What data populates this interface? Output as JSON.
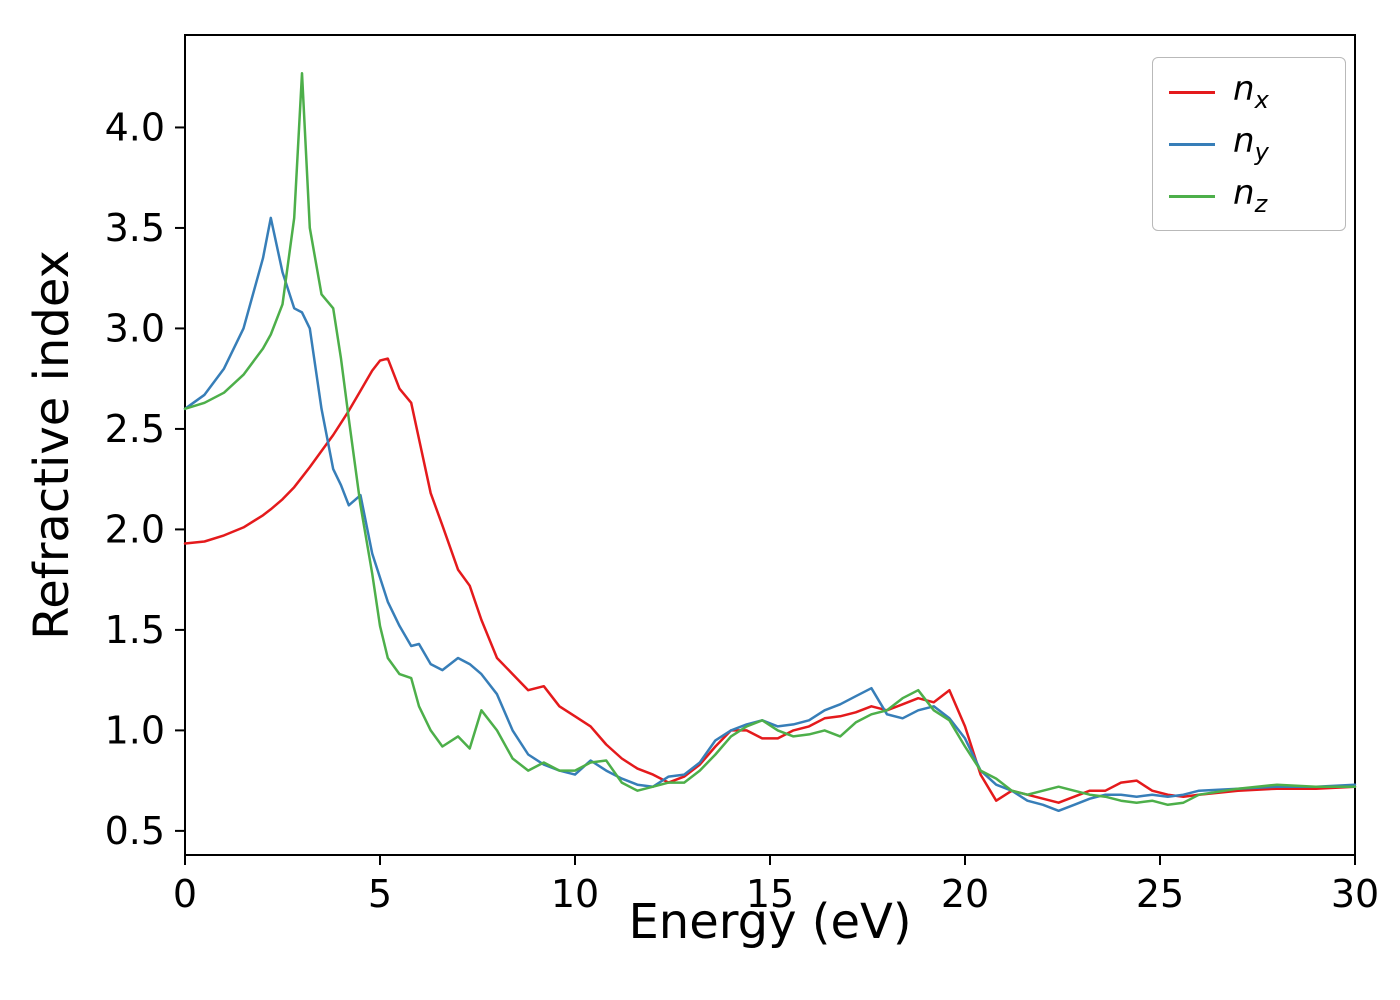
{
  "figure": {
    "background": "#ffffff",
    "frame_color": "#000000"
  },
  "legend": {
    "position": "upper right",
    "entries": [
      {
        "base": "n",
        "sub": "x",
        "color": "#e41a1c"
      },
      {
        "base": "n",
        "sub": "y",
        "color": "#377eb8"
      },
      {
        "base": "n",
        "sub": "z",
        "color": "#4daf4a"
      }
    ]
  },
  "chart_data": {
    "type": "line",
    "title": "",
    "xlabel": "Energy (eV)",
    "ylabel": "Refractive index",
    "xlim": [
      0,
      30
    ],
    "ylim": [
      0.38,
      4.46
    ],
    "grid": false,
    "legend_position": "upper right",
    "xticks": {
      "values": [
        0,
        5,
        10,
        15,
        20,
        25,
        30
      ],
      "labels": [
        "0",
        "5",
        "10",
        "15",
        "20",
        "25",
        "30"
      ]
    },
    "yticks": {
      "values": [
        0.5,
        1.0,
        1.5,
        2.0,
        2.5,
        3.0,
        3.5,
        4.0
      ],
      "labels": [
        "0.5",
        "1.0",
        "1.5",
        "2.0",
        "2.5",
        "3.0",
        "3.5",
        "4.0"
      ]
    },
    "x": [
      0,
      0.5,
      1,
      1.5,
      2,
      2.2,
      2.5,
      2.8,
      3,
      3.2,
      3.5,
      3.8,
      4,
      4.2,
      4.5,
      4.8,
      5,
      5.2,
      5.5,
      5.8,
      6,
      6.3,
      6.6,
      7,
      7.3,
      7.6,
      8,
      8.4,
      8.8,
      9.2,
      9.6,
      10,
      10.4,
      10.8,
      11.2,
      11.6,
      12,
      12.4,
      12.8,
      13.2,
      13.6,
      14,
      14.4,
      14.8,
      15.2,
      15.6,
      16,
      16.4,
      16.8,
      17.2,
      17.6,
      18,
      18.4,
      18.8,
      19.2,
      19.6,
      20,
      20.4,
      20.8,
      21.2,
      21.6,
      22,
      22.4,
      22.8,
      23.2,
      23.6,
      24,
      24.4,
      24.8,
      25.2,
      25.6,
      26,
      27,
      28,
      29,
      30
    ],
    "series": [
      {
        "name": "n_x",
        "color": "#e41a1c",
        "values": [
          1.93,
          1.94,
          1.97,
          2.01,
          2.07,
          2.1,
          2.15,
          2.21,
          2.26,
          2.31,
          2.39,
          2.47,
          2.53,
          2.59,
          2.69,
          2.79,
          2.84,
          2.85,
          2.7,
          2.63,
          2.45,
          2.18,
          2.02,
          1.8,
          1.72,
          1.55,
          1.36,
          1.28,
          1.2,
          1.22,
          1.12,
          1.07,
          1.02,
          0.93,
          0.86,
          0.81,
          0.78,
          0.74,
          0.77,
          0.83,
          0.92,
          1.0,
          1.0,
          0.96,
          0.96,
          1.0,
          1.02,
          1.06,
          1.07,
          1.09,
          1.12,
          1.1,
          1.13,
          1.16,
          1.14,
          1.2,
          1.02,
          0.78,
          0.65,
          0.7,
          0.68,
          0.66,
          0.64,
          0.67,
          0.7,
          0.7,
          0.74,
          0.75,
          0.7,
          0.68,
          0.67,
          0.68,
          0.7,
          0.71,
          0.71,
          0.72
        ]
      },
      {
        "name": "n_y",
        "color": "#377eb8",
        "values": [
          2.6,
          2.67,
          2.8,
          3.0,
          3.35,
          3.55,
          3.28,
          3.1,
          3.08,
          3.0,
          2.6,
          2.3,
          2.22,
          2.12,
          2.17,
          1.88,
          1.76,
          1.64,
          1.52,
          1.42,
          1.43,
          1.33,
          1.3,
          1.36,
          1.33,
          1.28,
          1.18,
          1.0,
          0.88,
          0.83,
          0.8,
          0.78,
          0.85,
          0.8,
          0.76,
          0.73,
          0.72,
          0.77,
          0.78,
          0.84,
          0.95,
          1.0,
          1.03,
          1.05,
          1.02,
          1.03,
          1.05,
          1.1,
          1.13,
          1.17,
          1.21,
          1.08,
          1.06,
          1.1,
          1.12,
          1.06,
          0.96,
          0.8,
          0.73,
          0.7,
          0.65,
          0.63,
          0.6,
          0.63,
          0.66,
          0.68,
          0.68,
          0.67,
          0.68,
          0.67,
          0.68,
          0.7,
          0.71,
          0.72,
          0.72,
          0.73
        ]
      },
      {
        "name": "n_z",
        "color": "#4daf4a",
        "values": [
          2.6,
          2.63,
          2.68,
          2.77,
          2.9,
          2.97,
          3.12,
          3.55,
          4.27,
          3.5,
          3.17,
          3.1,
          2.85,
          2.55,
          2.12,
          1.78,
          1.52,
          1.36,
          1.28,
          1.26,
          1.12,
          1.0,
          0.92,
          0.97,
          0.91,
          1.1,
          1.0,
          0.86,
          0.8,
          0.84,
          0.8,
          0.8,
          0.84,
          0.85,
          0.74,
          0.7,
          0.72,
          0.74,
          0.74,
          0.8,
          0.88,
          0.97,
          1.02,
          1.05,
          1.0,
          0.97,
          0.98,
          1.0,
          0.97,
          1.04,
          1.08,
          1.1,
          1.16,
          1.2,
          1.1,
          1.05,
          0.92,
          0.8,
          0.76,
          0.7,
          0.68,
          0.7,
          0.72,
          0.7,
          0.68,
          0.67,
          0.65,
          0.64,
          0.65,
          0.63,
          0.64,
          0.68,
          0.71,
          0.73,
          0.72,
          0.72
        ]
      }
    ]
  }
}
